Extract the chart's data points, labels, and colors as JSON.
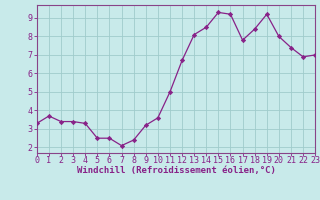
{
  "x": [
    0,
    1,
    2,
    3,
    4,
    5,
    6,
    7,
    8,
    9,
    10,
    11,
    12,
    13,
    14,
    15,
    16,
    17,
    18,
    19,
    20,
    21,
    22,
    23
  ],
  "y": [
    3.3,
    3.7,
    3.4,
    3.4,
    3.3,
    2.5,
    2.5,
    2.1,
    2.4,
    3.2,
    3.6,
    5.0,
    6.7,
    8.1,
    8.5,
    9.3,
    9.2,
    7.8,
    8.4,
    9.2,
    8.0,
    7.4,
    6.9,
    7.0
  ],
  "xlim": [
    0,
    23
  ],
  "ylim": [
    1.7,
    9.7
  ],
  "yticks": [
    2,
    3,
    4,
    5,
    6,
    7,
    8,
    9
  ],
  "xticks": [
    0,
    1,
    2,
    3,
    4,
    5,
    6,
    7,
    8,
    9,
    10,
    11,
    12,
    13,
    14,
    15,
    16,
    17,
    18,
    19,
    20,
    21,
    22,
    23
  ],
  "xlabel": "Windchill (Refroidissement éolien,°C)",
  "line_color": "#882288",
  "marker": "D",
  "marker_size": 2.2,
  "bg_color": "#c8eaea",
  "grid_color": "#a0cccc",
  "spine_color": "#884488",
  "tick_label_color": "#882288",
  "xlabel_color": "#882288",
  "xlabel_fontsize": 6.5,
  "tick_fontsize": 6.0,
  "bottom_bar_color": "#993399",
  "bottom_bar_height": 0.13
}
